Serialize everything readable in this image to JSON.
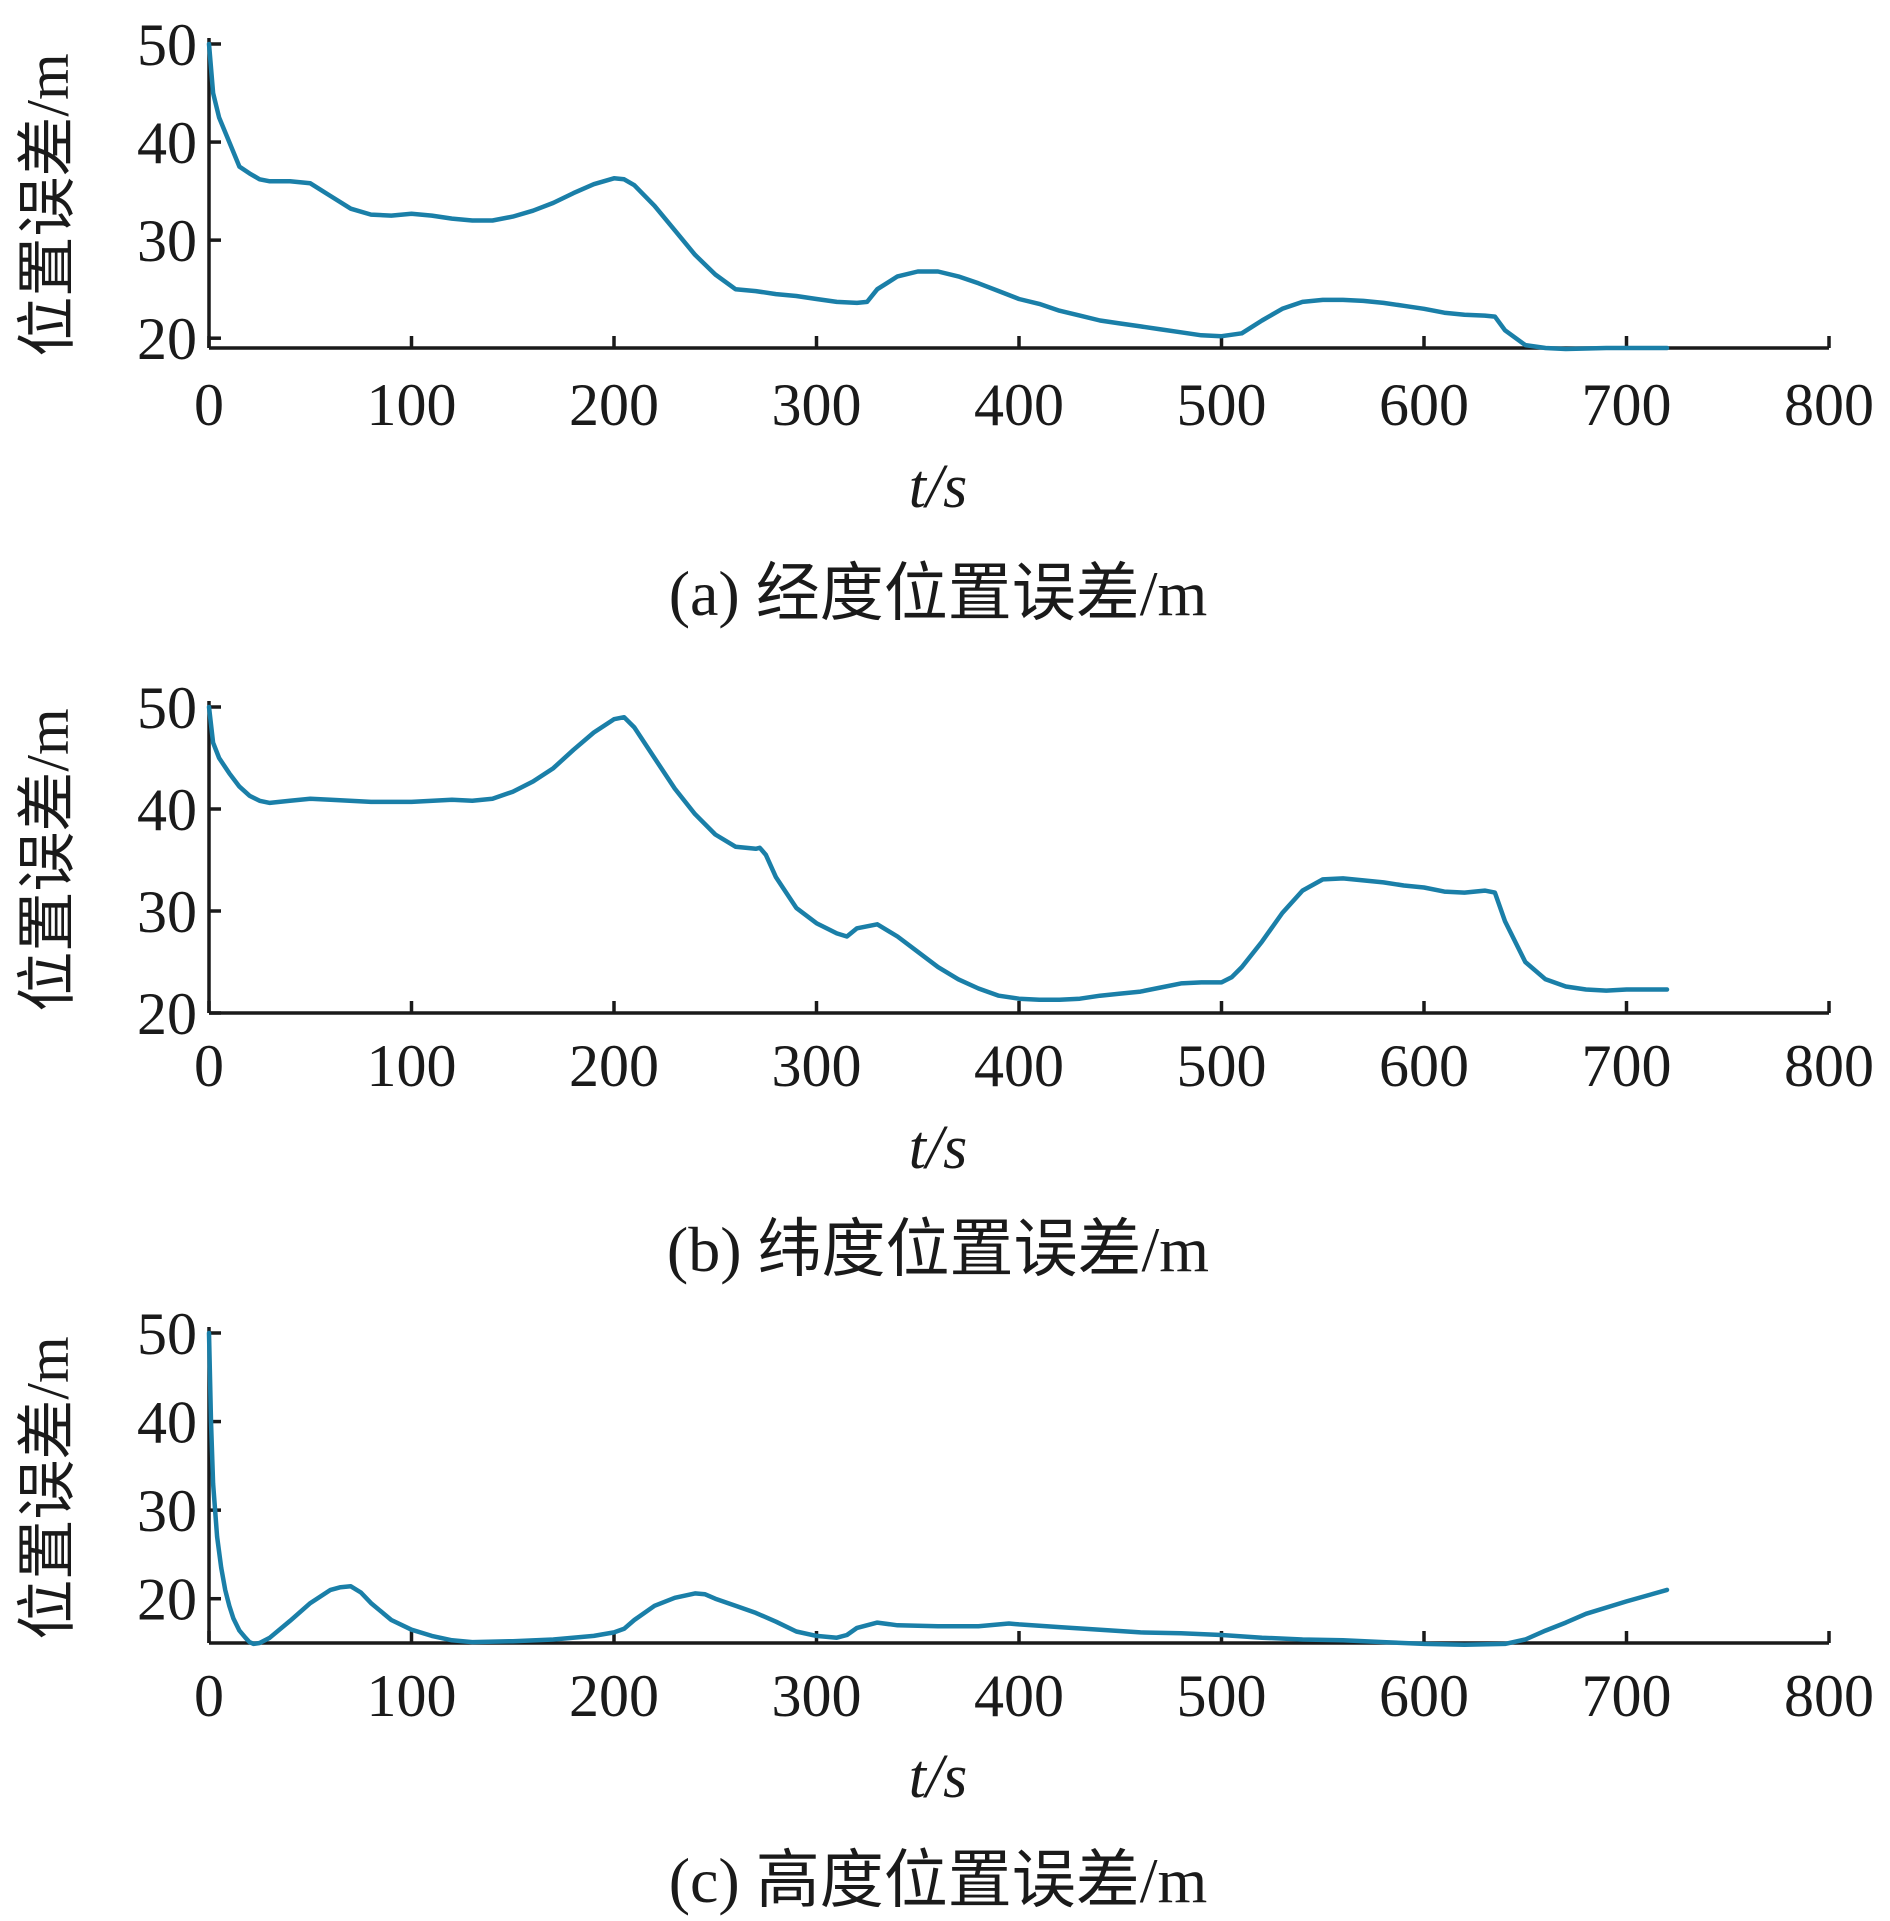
{
  "chart_data": [
    {
      "type": "line",
      "title": "(a) 经度位置误差/m",
      "xlabel": "t/s",
      "ylabel": "位置误差/m",
      "xlim": [
        0,
        800
      ],
      "ylim": [
        19,
        50
      ],
      "xticks": [
        0,
        100,
        200,
        300,
        400,
        500,
        600,
        700,
        800
      ],
      "yticks": [
        20,
        30,
        40,
        50
      ],
      "grid": false,
      "color": "#1a7fa8",
      "series": [
        {
          "x": [
            0,
            2,
            5,
            10,
            15,
            20,
            25,
            30,
            40,
            50,
            60,
            70,
            80,
            90,
            100,
            110,
            120,
            130,
            140,
            150,
            160,
            170,
            180,
            190,
            200,
            205,
            210,
            220,
            230,
            240,
            250,
            260,
            270,
            280,
            290,
            300,
            310,
            320,
            325,
            330,
            340,
            350,
            360,
            370,
            380,
            390,
            400,
            410,
            420,
            430,
            440,
            450,
            460,
            470,
            480,
            490,
            500,
            510,
            520,
            530,
            540,
            550,
            560,
            570,
            580,
            590,
            600,
            610,
            620,
            630,
            635,
            640,
            650,
            660,
            670,
            680,
            690,
            700,
            710,
            720
          ],
          "y": [
            50,
            45,
            42.5,
            40,
            37.5,
            36.8,
            36.2,
            36,
            36,
            35.8,
            34.5,
            33.2,
            32.6,
            32.5,
            32.7,
            32.5,
            32.2,
            32,
            32,
            32.4,
            33,
            33.8,
            34.8,
            35.7,
            36.3,
            36.2,
            35.6,
            33.5,
            31,
            28.5,
            26.5,
            25,
            24.8,
            24.5,
            24.3,
            24,
            23.7,
            23.6,
            23.7,
            25,
            26.3,
            26.8,
            26.8,
            26.3,
            25.6,
            24.8,
            24,
            23.5,
            22.8,
            22.3,
            21.8,
            21.5,
            21.2,
            20.9,
            20.6,
            20.3,
            20.2,
            20.5,
            21.8,
            23,
            23.7,
            23.9,
            23.9,
            23.8,
            23.6,
            23.3,
            23,
            22.6,
            22.4,
            22.3,
            22.2,
            20.8,
            19.3,
            19,
            18.9,
            18.95,
            19,
            19,
            19,
            19
          ]
        }
      ]
    },
    {
      "type": "line",
      "title": "(b) 纬度位置误差/m",
      "xlabel": "t/s",
      "ylabel": "位置误差/m",
      "xlim": [
        0,
        800
      ],
      "ylim": [
        20,
        50
      ],
      "xticks": [
        0,
        100,
        200,
        300,
        400,
        500,
        600,
        700,
        800
      ],
      "yticks": [
        20,
        30,
        40,
        50
      ],
      "grid": false,
      "color": "#1a7fa8",
      "series": [
        {
          "x": [
            0,
            2,
            5,
            10,
            15,
            20,
            25,
            30,
            40,
            50,
            60,
            80,
            100,
            120,
            130,
            140,
            150,
            160,
            170,
            180,
            190,
            200,
            205,
            210,
            220,
            230,
            240,
            250,
            260,
            270,
            272,
            275,
            280,
            290,
            300,
            310,
            315,
            320,
            330,
            340,
            350,
            360,
            370,
            380,
            390,
            400,
            410,
            420,
            430,
            440,
            450,
            460,
            470,
            480,
            490,
            500,
            505,
            510,
            520,
            530,
            540,
            550,
            560,
            570,
            580,
            590,
            600,
            610,
            620,
            630,
            635,
            640,
            650,
            660,
            670,
            680,
            690,
            700,
            710,
            720
          ],
          "y": [
            50,
            46.5,
            45,
            43.5,
            42.2,
            41.3,
            40.8,
            40.6,
            40.8,
            41,
            40.9,
            40.7,
            40.7,
            40.9,
            40.8,
            41,
            41.7,
            42.7,
            44,
            45.8,
            47.5,
            48.8,
            49,
            48,
            45,
            42,
            39.5,
            37.5,
            36.3,
            36.1,
            36.2,
            35.5,
            33.3,
            30.3,
            28.8,
            27.8,
            27.5,
            28.3,
            28.7,
            27.5,
            26,
            24.5,
            23.3,
            22.4,
            21.7,
            21.4,
            21.3,
            21.3,
            21.4,
            21.7,
            21.9,
            22.1,
            22.5,
            22.9,
            23,
            23,
            23.5,
            24.5,
            27,
            29.8,
            32,
            33.1,
            33.2,
            33,
            32.8,
            32.5,
            32.3,
            31.9,
            31.8,
            32,
            31.8,
            29,
            25,
            23.3,
            22.6,
            22.3,
            22.2,
            22.3,
            22.3,
            22.3
          ]
        }
      ]
    },
    {
      "type": "line",
      "title": "(c) 高度位置误差/m",
      "xlabel": "t/s",
      "ylabel": "位置误差/m",
      "xlim": [
        0,
        800
      ],
      "ylim": [
        15,
        50
      ],
      "xticks": [
        0,
        100,
        200,
        300,
        400,
        500,
        600,
        700,
        800
      ],
      "yticks": [
        20,
        30,
        40,
        50
      ],
      "grid": false,
      "color": "#1a7fa8",
      "series": [
        {
          "x": [
            0,
            1,
            2,
            4,
            6,
            8,
            10,
            12,
            15,
            18,
            20,
            22,
            25,
            30,
            40,
            50,
            60,
            65,
            70,
            75,
            80,
            90,
            100,
            110,
            120,
            130,
            150,
            170,
            190,
            200,
            205,
            210,
            220,
            230,
            240,
            245,
            250,
            260,
            270,
            280,
            290,
            300,
            310,
            315,
            320,
            330,
            340,
            360,
            380,
            395,
            400,
            420,
            440,
            460,
            480,
            500,
            520,
            540,
            560,
            580,
            600,
            620,
            640,
            650,
            660,
            670,
            680,
            700,
            720
          ],
          "y": [
            50,
            40,
            33,
            27,
            23.5,
            21,
            19.2,
            17.8,
            16.4,
            15.6,
            15.1,
            14.9,
            15,
            15.6,
            17.5,
            19.5,
            21,
            21.3,
            21.4,
            20.7,
            19.5,
            17.6,
            16.5,
            15.8,
            15.3,
            15.1,
            15.2,
            15.4,
            15.8,
            16.2,
            16.6,
            17.6,
            19.2,
            20.1,
            20.6,
            20.5,
            20,
            19.2,
            18.4,
            17.4,
            16.3,
            15.8,
            15.6,
            15.9,
            16.7,
            17.3,
            17,
            16.9,
            16.9,
            17.2,
            17.1,
            16.8,
            16.5,
            16.2,
            16.1,
            15.9,
            15.6,
            15.4,
            15.3,
            15.1,
            14.9,
            14.8,
            14.9,
            15.4,
            16.4,
            17.3,
            18.3,
            19.7,
            21
          ]
        }
      ]
    }
  ]
}
